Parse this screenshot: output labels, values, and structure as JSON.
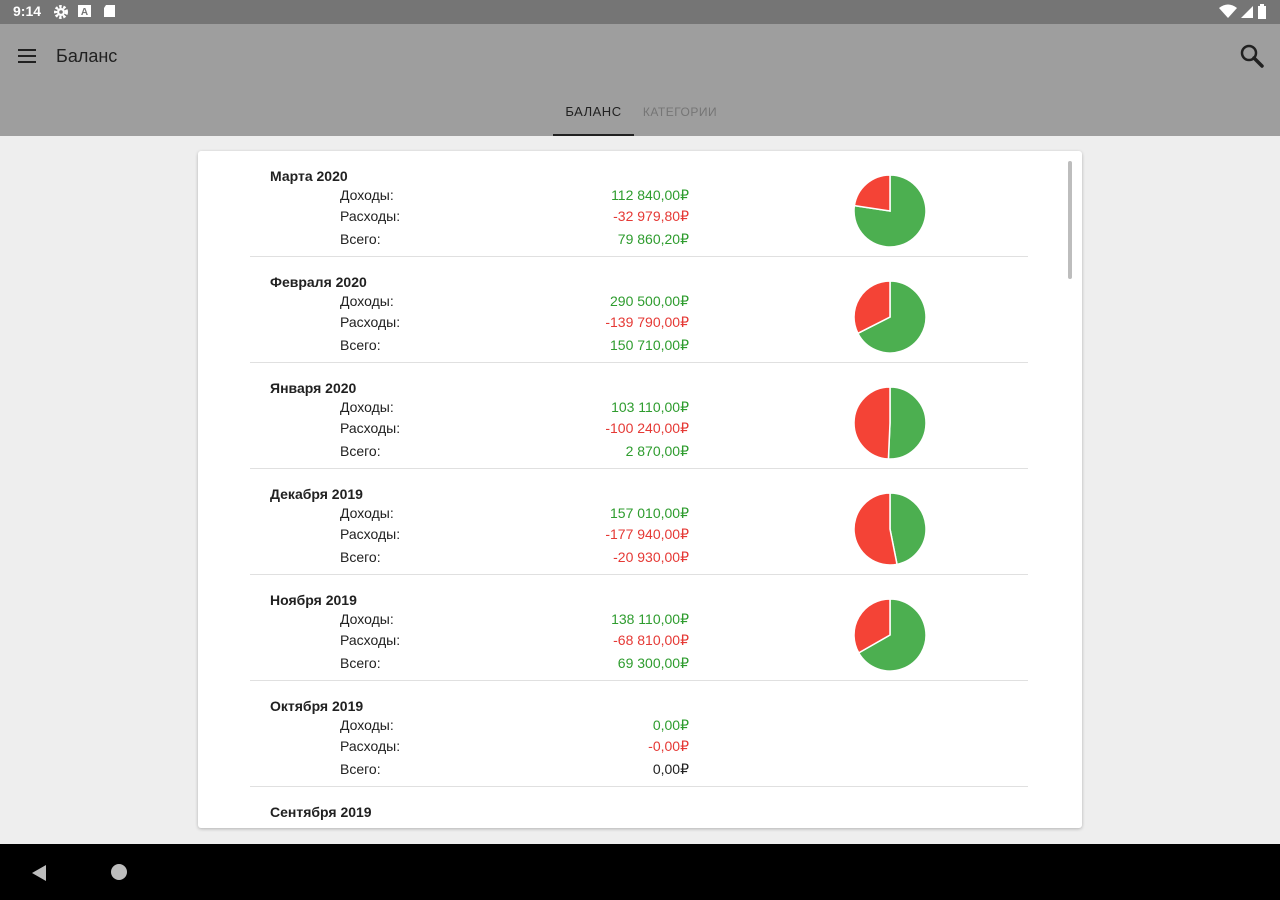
{
  "status_bar": {
    "time": "9:14",
    "icons_left": [
      "gear-icon",
      "text-a-icon",
      "sd-card-icon"
    ],
    "icons_right": [
      "wifi-icon",
      "signal-icon",
      "battery-icon"
    ]
  },
  "app_bar": {
    "title": "Баланс",
    "menu_icon": "menu-icon",
    "search_icon": "search-icon"
  },
  "tabs": [
    {
      "label": "БАЛАНС",
      "active": true
    },
    {
      "label": "КАТЕГОРИИ",
      "active": false
    }
  ],
  "colors": {
    "income": "#2e9c2e",
    "expense": "#e53935",
    "neutral": "#212121",
    "pie_income": "#4caf50",
    "pie_expense": "#f44336"
  },
  "months": [
    {
      "title": "Марта 2020",
      "income_label": "Доходы:",
      "income": "112 840,00₽",
      "expense_label": "Расходы:",
      "expense": "-32 979,80₽",
      "total_label": "Всего:",
      "total": "79 860,20₽",
      "total_sign": "positive",
      "income_value": 112840.0,
      "expense_value": 32979.8
    },
    {
      "title": "Февраля 2020",
      "income_label": "Доходы:",
      "income": "290 500,00₽",
      "expense_label": "Расходы:",
      "expense": "-139 790,00₽",
      "total_label": "Всего:",
      "total": "150 710,00₽",
      "total_sign": "positive",
      "income_value": 290500.0,
      "expense_value": 139790.0
    },
    {
      "title": "Января 2020",
      "income_label": "Доходы:",
      "income": "103 110,00₽",
      "expense_label": "Расходы:",
      "expense": "-100 240,00₽",
      "total_label": "Всего:",
      "total": "2 870,00₽",
      "total_sign": "positive",
      "income_value": 103110.0,
      "expense_value": 100240.0
    },
    {
      "title": "Декабря 2019",
      "income_label": "Доходы:",
      "income": "157 010,00₽",
      "expense_label": "Расходы:",
      "expense": "-177 940,00₽",
      "total_label": "Всего:",
      "total": "-20 930,00₽",
      "total_sign": "negative",
      "income_value": 157010.0,
      "expense_value": 177940.0
    },
    {
      "title": "Ноября 2019",
      "income_label": "Доходы:",
      "income": "138 110,00₽",
      "expense_label": "Расходы:",
      "expense": "-68 810,00₽",
      "total_label": "Всего:",
      "total": "69 300,00₽",
      "total_sign": "positive",
      "income_value": 138110.0,
      "expense_value": 68810.0
    },
    {
      "title": "Октября 2019",
      "income_label": "Доходы:",
      "income": "0,00₽",
      "expense_label": "Расходы:",
      "expense": "-0,00₽",
      "total_label": "Всего:",
      "total": "0,00₽",
      "total_sign": "zero",
      "income_value": 0,
      "expense_value": 0
    },
    {
      "title": "Сентября 2019",
      "income_label": "",
      "income": "",
      "expense_label": "",
      "expense": "",
      "total_label": "",
      "total": "",
      "total_sign": "zero",
      "income_value": 0,
      "expense_value": 0
    }
  ],
  "nav_bar": {
    "back_icon": "back-triangle-icon",
    "home_icon": "home-circle-icon"
  }
}
